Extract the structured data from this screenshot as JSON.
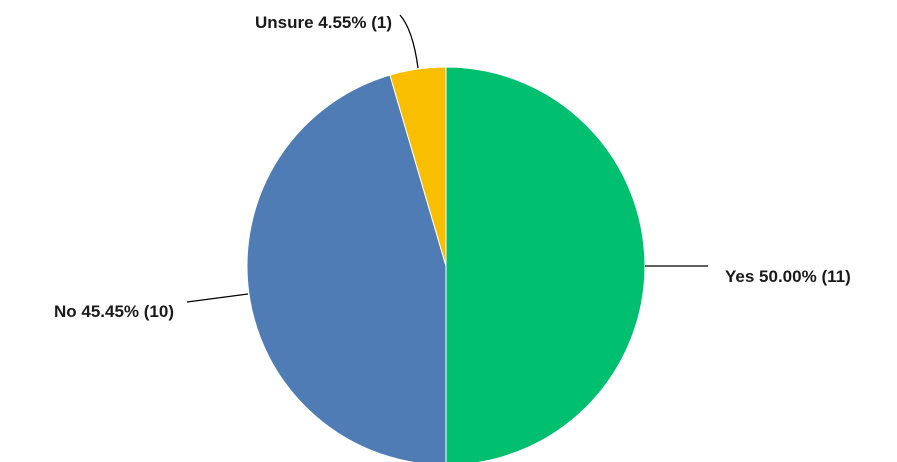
{
  "chart_data": {
    "type": "pie",
    "slices": [
      {
        "name": "Yes",
        "percent_label": "50.00%",
        "count_label": "(11)",
        "value": 11,
        "color": "#00bf6f"
      },
      {
        "name": "No",
        "percent_label": "45.45%",
        "count_label": "(10)",
        "value": 10,
        "color": "#507cb6"
      },
      {
        "name": "Unsure",
        "percent_label": "4.55%",
        "count_label": "(1)",
        "value": 1,
        "color": "#f9be00"
      }
    ],
    "start": "12 o'clock",
    "direction": "clockwise",
    "legend": "none",
    "labels": "outside with leader lines"
  }
}
